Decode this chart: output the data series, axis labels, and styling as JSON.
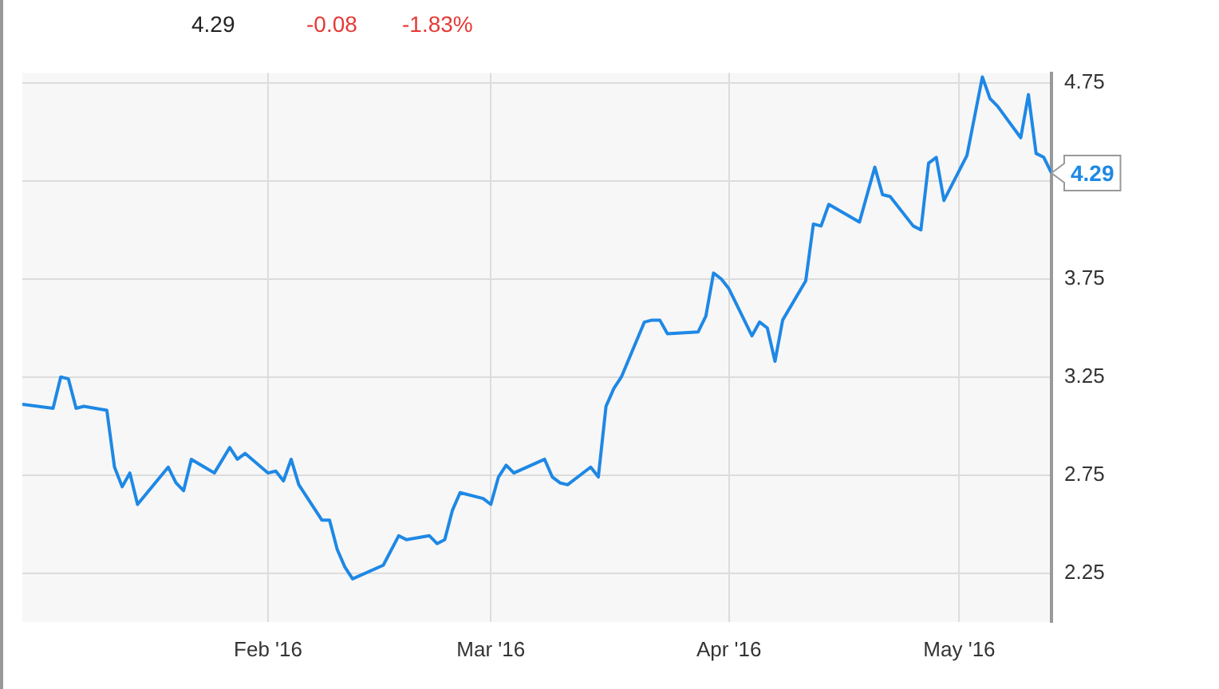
{
  "chart_data": {
    "type": "line",
    "x": [
      "2015-12-31",
      "2016-01-04",
      "2016-01-05",
      "2016-01-06",
      "2016-01-07",
      "2016-01-08",
      "2016-01-11",
      "2016-01-12",
      "2016-01-13",
      "2016-01-14",
      "2016-01-15",
      "2016-01-19",
      "2016-01-20",
      "2016-01-21",
      "2016-01-22",
      "2016-01-25",
      "2016-01-27",
      "2016-01-28",
      "2016-01-29",
      "2016-02-01",
      "2016-02-02",
      "2016-02-03",
      "2016-02-04",
      "2016-02-05",
      "2016-02-08",
      "2016-02-09",
      "2016-02-10",
      "2016-02-11",
      "2016-02-12",
      "2016-02-16",
      "2016-02-18",
      "2016-02-19",
      "2016-02-22",
      "2016-02-23",
      "2016-02-24",
      "2016-02-25",
      "2016-02-26",
      "2016-02-29",
      "2016-03-01",
      "2016-03-02",
      "2016-03-03",
      "2016-03-04",
      "2016-03-08",
      "2016-03-09",
      "2016-03-10",
      "2016-03-11",
      "2016-03-14",
      "2016-03-15",
      "2016-03-16",
      "2016-03-17",
      "2016-03-18",
      "2016-03-21",
      "2016-03-22",
      "2016-03-23",
      "2016-03-24",
      "2016-03-28",
      "2016-03-29",
      "2016-03-30",
      "2016-03-31",
      "2016-04-01",
      "2016-04-04",
      "2016-04-05",
      "2016-04-06",
      "2016-04-07",
      "2016-04-08",
      "2016-04-11",
      "2016-04-12",
      "2016-04-13",
      "2016-04-14",
      "2016-04-18",
      "2016-04-20",
      "2016-04-21",
      "2016-04-22",
      "2016-04-25",
      "2016-04-26",
      "2016-04-27",
      "2016-04-28",
      "2016-04-29",
      "2016-05-02",
      "2016-05-04",
      "2016-05-05",
      "2016-05-06",
      "2016-05-09",
      "2016-05-10",
      "2016-05-11",
      "2016-05-12",
      "2016-05-13"
    ],
    "series": [
      {
        "color": "#1e88e5",
        "values": [
          3.11,
          3.09,
          3.25,
          3.24,
          3.09,
          3.1,
          3.08,
          2.79,
          2.69,
          2.76,
          2.6,
          2.79,
          2.71,
          2.67,
          2.83,
          2.76,
          2.89,
          2.83,
          2.86,
          2.76,
          2.77,
          2.72,
          2.83,
          2.7,
          2.52,
          2.52,
          2.37,
          2.28,
          2.22,
          2.29,
          2.44,
          2.42,
          2.44,
          2.4,
          2.42,
          2.57,
          2.66,
          2.63,
          2.6,
          2.74,
          2.8,
          2.76,
          2.83,
          2.74,
          2.71,
          2.7,
          2.79,
          2.74,
          3.1,
          3.19,
          3.25,
          3.53,
          3.54,
          3.54,
          3.47,
          3.48,
          3.56,
          3.78,
          3.75,
          3.7,
          3.46,
          3.53,
          3.5,
          3.33,
          3.54,
          3.74,
          4.03,
          4.02,
          4.13,
          4.04,
          4.32,
          4.18,
          4.17,
          4.02,
          4.0,
          4.34,
          4.37,
          4.15,
          4.38,
          4.78,
          4.67,
          4.63,
          4.47,
          4.69,
          4.39,
          4.37,
          4.29
        ]
      }
    ],
    "xlim": [
      "2015-12-31",
      "2016-05-13"
    ],
    "xticks": [
      {
        "value": "2016-02-01",
        "label": "Feb '16"
      },
      {
        "value": "2016-03-01",
        "label": "Mar '16"
      },
      {
        "value": "2016-04-01",
        "label": "Apr '16"
      },
      {
        "value": "2016-05-01",
        "label": "May '16"
      }
    ],
    "ylim": [
      2.0,
      4.8
    ],
    "yticks": [
      2.25,
      2.75,
      3.25,
      3.75,
      {
        "value": 4.25,
        "label": null
      },
      4.75
    ],
    "grid": true,
    "legend": false,
    "marker": "none",
    "line_style": "solid",
    "annotations": [
      "4.29",
      "-0.08",
      "-1.83%",
      {
        "text": "4.29",
        "x": "2016-05-13",
        "y": 4.29
      }
    ]
  }
}
